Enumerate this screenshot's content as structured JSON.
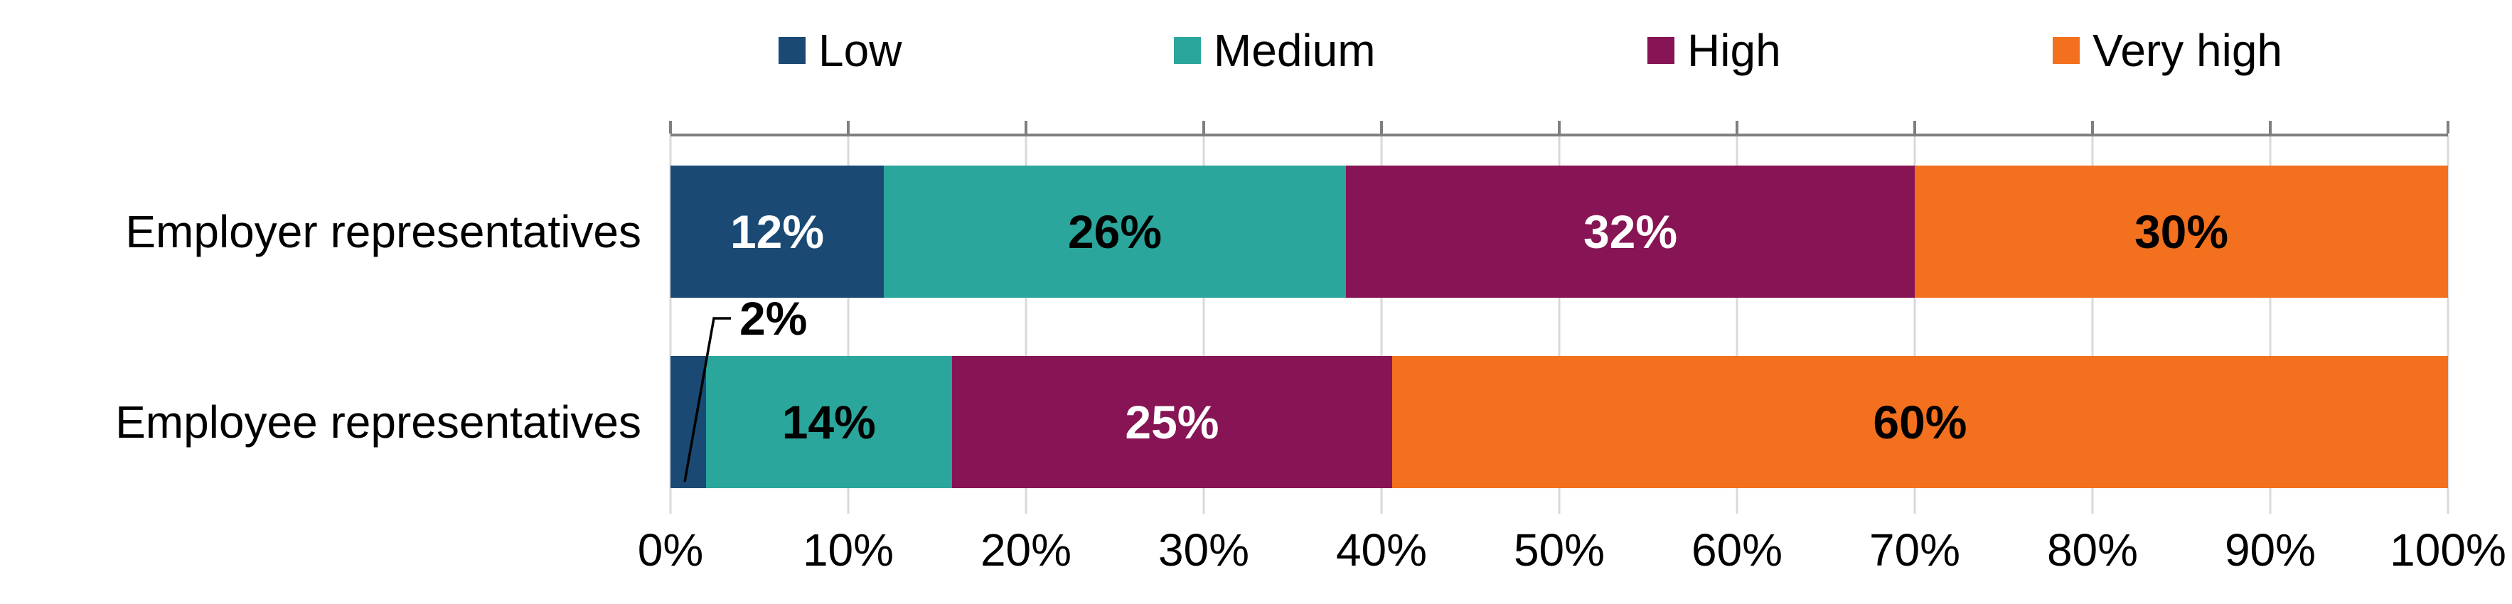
{
  "chart_data": {
    "type": "bar",
    "orientation": "horizontal",
    "stacked": true,
    "title": "",
    "categories": [
      "Employer representatives",
      "Employee representatives"
    ],
    "series": [
      {
        "name": "Low",
        "color": "#1a4a74",
        "label_color": "#ffffff",
        "values": [
          12,
          2
        ]
      },
      {
        "name": "Medium",
        "color": "#2ba69c",
        "label_color": "#000000",
        "values": [
          26,
          14
        ]
      },
      {
        "name": "High",
        "color": "#871454",
        "label_color": "#ffffff",
        "values": [
          32,
          25
        ]
      },
      {
        "name": "Very high",
        "color": "#f3701e",
        "label_color": "#000000",
        "values": [
          30,
          60
        ]
      }
    ],
    "value_suffix": "%",
    "xlim": [
      0,
      100
    ],
    "x_ticks": [
      "0%",
      "10%",
      "20%",
      "30%",
      "40%",
      "50%",
      "60%",
      "70%",
      "80%",
      "90%",
      "100%"
    ],
    "grid": true,
    "legend_position": "top",
    "min_inline_label": 4,
    "annotations": [
      {
        "text": "2%",
        "category": "Employee representatives",
        "series": "Low"
      }
    ]
  },
  "colors": {
    "axis_line": "#7f7f7f",
    "gridline": "#d9d9d9",
    "text": "#000000",
    "background": "#ffffff"
  }
}
